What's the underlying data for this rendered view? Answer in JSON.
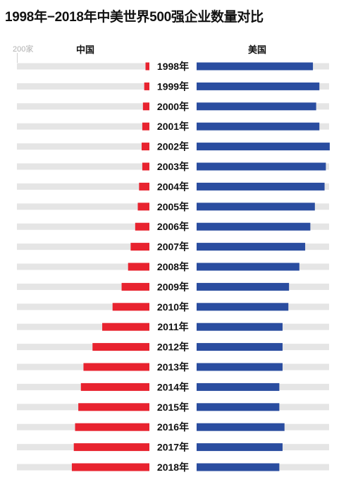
{
  "title": "1998年−2018年中美世界500强企业数量对比",
  "scale_label": "200家",
  "headers": {
    "china": "中国",
    "usa": "美国"
  },
  "colors": {
    "china": "#e8232f",
    "usa": "#2a4da0",
    "track": "#e5e5e5"
  },
  "chart_data": {
    "type": "bar",
    "layout": "diverging-horizontal",
    "title": "1998年−2018年中美世界500强企业数量对比",
    "scale_note": "200家",
    "categories": [
      "1998年",
      "1999年",
      "2000年",
      "2001年",
      "2002年",
      "2003年",
      "2004年",
      "2005年",
      "2006年",
      "2007年",
      "2008年",
      "2009年",
      "2010年",
      "2011年",
      "2012年",
      "2013年",
      "2014年",
      "2015年",
      "2016年",
      "2017年",
      "2018年"
    ],
    "series": [
      {
        "name": "中国",
        "values": [
          6,
          8,
          10,
          11,
          12,
          11,
          16,
          18,
          22,
          29,
          33,
          43,
          57,
          73,
          88,
          102,
          106,
          110,
          115,
          117,
          120
        ]
      },
      {
        "name": "美国",
        "values": [
          180,
          190,
          185,
          190,
          206,
          200,
          198,
          183,
          176,
          168,
          159,
          143,
          142,
          133,
          133,
          133,
          128,
          128,
          136,
          133,
          128
        ]
      }
    ],
    "xlim": [
      0,
      205
    ],
    "grid": false,
    "legend": "top"
  }
}
